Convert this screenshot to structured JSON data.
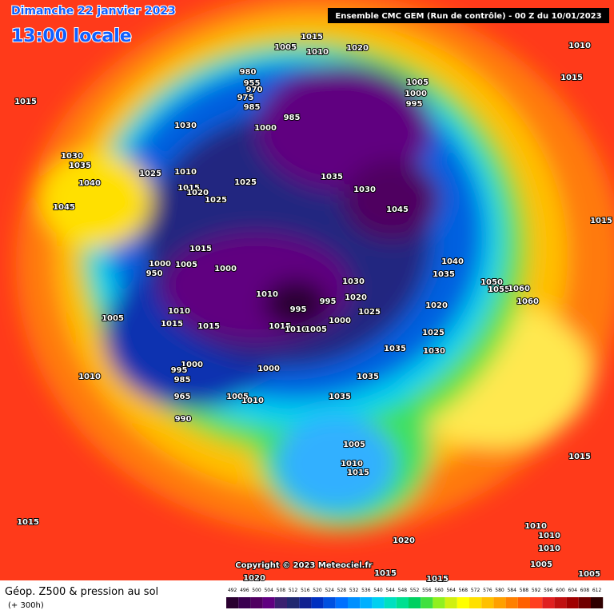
{
  "header": {
    "date": "Dimanche 22 janvier 2023",
    "time": "13:00 locale",
    "run": "Ensemble CMC GEM  (Run de contrôle)  -  00 Z du 10/01/2023"
  },
  "copyright": "Copyright © 2023 Meteociel.fr",
  "pressure_labels": [
    1015,
    1005,
    1010,
    1020,
    1010,
    1015,
    1015,
    980,
    955,
    970,
    975,
    985,
    1030,
    1000,
    985,
    1005,
    1000,
    995,
    1030,
    1035,
    1025,
    1010,
    1040,
    1015,
    1020,
    1025,
    1025,
    1035,
    1030,
    1045,
    1045,
    1015,
    1015,
    1000,
    1005,
    1000,
    950,
    1040,
    1035,
    1050,
    1055,
    1060,
    1010,
    1030,
    1020,
    995,
    995,
    1025,
    1020,
    1060,
    1005,
    1010,
    1015,
    1015,
    1000,
    1015,
    1010,
    1005,
    1025,
    1030,
    1035,
    1010,
    1000,
    1000,
    995,
    985,
    965,
    1035,
    1005,
    1010,
    1035,
    990,
    1005,
    1010,
    1015,
    1015,
    1015,
    1010,
    1010,
    1010,
    1020,
    1005,
    1020,
    1015,
    1015,
    1005
  ],
  "legend": {
    "title": "Géop. Z500 & pression au sol",
    "lead": "(+ 300h)",
    "values": [
      492,
      496,
      500,
      504,
      508,
      512,
      516,
      520,
      524,
      528,
      532,
      536,
      540,
      544,
      548,
      552,
      556,
      560,
      564,
      568,
      572,
      576,
      580,
      584,
      588,
      592,
      596,
      600,
      604,
      608,
      612
    ],
    "colors": [
      "#2a0030",
      "#3a0050",
      "#500060",
      "#600080",
      "#3a2070",
      "#202870",
      "#102090",
      "#0030c0",
      "#0050e0",
      "#0070ff",
      "#0090ff",
      "#00b0ff",
      "#00d0f0",
      "#00e0c0",
      "#00e090",
      "#00d060",
      "#40e040",
      "#90f020",
      "#d0f010",
      "#ffff00",
      "#ffe000",
      "#ffc000",
      "#ffa000",
      "#ff8000",
      "#ff6000",
      "#ff4020",
      "#e02020",
      "#c01010",
      "#a00000",
      "#700000",
      "#300000"
    ]
  }
}
